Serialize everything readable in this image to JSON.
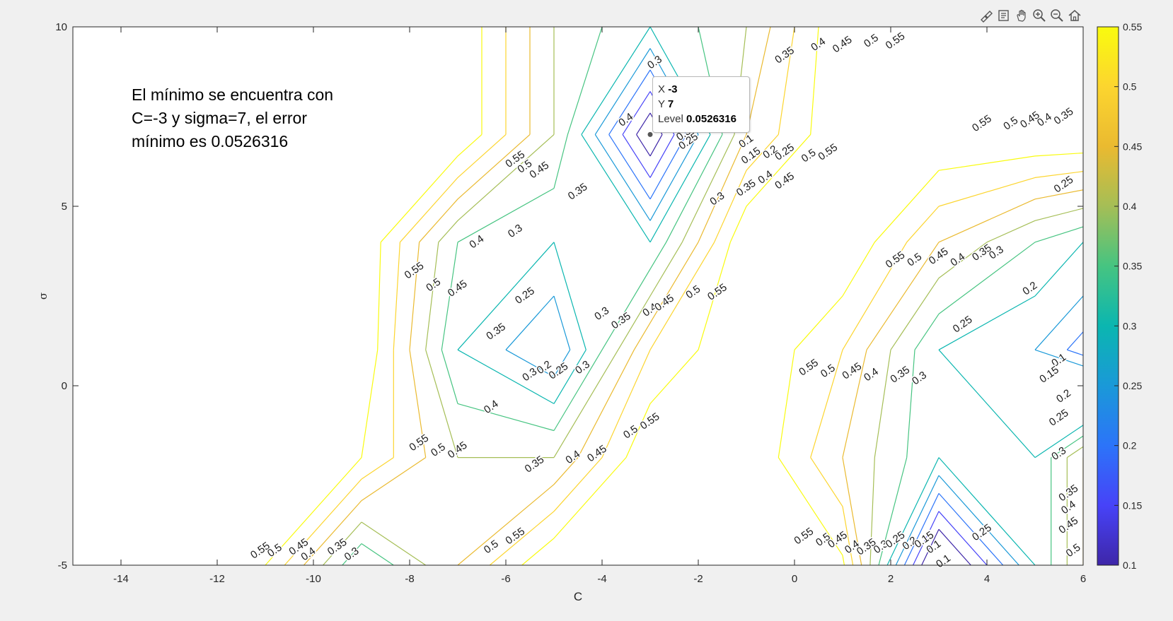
{
  "toolbar": {
    "items": [
      {
        "name": "brush-icon",
        "label": "Brush"
      },
      {
        "name": "datatip-icon",
        "label": "Data Tips"
      },
      {
        "name": "pan-icon",
        "label": "Pan"
      },
      {
        "name": "zoom-in-icon",
        "label": "Zoom In"
      },
      {
        "name": "zoom-out-icon",
        "label": "Zoom Out"
      },
      {
        "name": "home-icon",
        "label": "Restore View"
      }
    ]
  },
  "annotation": {
    "lines": [
      "El mínimo se encuentra con",
      "C=-3 y sigma=7, el error",
      "mínimo es 0.0526316"
    ]
  },
  "datatip": {
    "x_label": "X",
    "x_value": "-3",
    "y_label": "Y",
    "y_value": "7",
    "level_label": "Level",
    "level_value": "0.0526316"
  },
  "colorbar": {
    "min": 0.1,
    "max": 0.55,
    "ticks": [
      "0.1",
      "0.15",
      "0.2",
      "0.25",
      "0.3",
      "0.35",
      "0.4",
      "0.45",
      "0.5",
      "0.55"
    ],
    "colors": [
      "#3e26a8",
      "#4743f8",
      "#2c74f9",
      "#1a99d8",
      "#0bb6b0",
      "#46c481",
      "#a5be56",
      "#eaba30",
      "#fcd52f",
      "#f9fb0e"
    ]
  },
  "chart_data": {
    "type": "contour",
    "xlabel": "C",
    "ylabel": "σ",
    "xlim": [
      -15,
      6
    ],
    "ylim": [
      -5,
      10
    ],
    "xticks": [
      "-14",
      "-12",
      "-10",
      "-8",
      "-6",
      "-4",
      "-2",
      "0",
      "2",
      "4",
      "6"
    ],
    "xtick_values": [
      -14,
      -12,
      -10,
      -8,
      -6,
      -4,
      -2,
      0,
      2,
      4,
      6
    ],
    "yticks": [
      "10",
      "5",
      "0",
      "-5"
    ],
    "ytick_values": [
      10,
      5,
      0,
      -5
    ],
    "grid_x": [
      -15,
      -13,
      -11,
      -9,
      -7,
      -5,
      -3,
      -1,
      1,
      3,
      5,
      7
    ],
    "grid_y": [
      -5,
      -2,
      1,
      4,
      7,
      10
    ],
    "levels": [
      0.1,
      0.15,
      0.2,
      0.25,
      0.3,
      0.35,
      0.4,
      0.45,
      0.5,
      0.55
    ],
    "z": [
      [
        0.6,
        0.6,
        0.55,
        0.3,
        0.45,
        0.6,
        0.6,
        0.6,
        0.56,
        0.0,
        0.3,
        0.6
      ],
      [
        0.6,
        0.6,
        0.6,
        0.55,
        0.4,
        0.4,
        0.6,
        0.6,
        0.45,
        0.3,
        0.3,
        0.6
      ],
      [
        0.6,
        0.6,
        0.6,
        0.6,
        0.3,
        0.2,
        0.5,
        0.6,
        0.5,
        0.3,
        0.25,
        0.1
      ],
      [
        0.6,
        0.6,
        0.6,
        0.6,
        0.35,
        0.3,
        0.3,
        0.6,
        0.6,
        0.45,
        0.35,
        0.25
      ],
      [
        0.6,
        0.6,
        0.6,
        0.6,
        0.6,
        0.4,
        0.05,
        0.45,
        0.6,
        0.6,
        0.6,
        0.6
      ],
      [
        0.6,
        0.6,
        0.6,
        0.6,
        0.6,
        0.4,
        0.3,
        0.4,
        0.6,
        0.6,
        0.6,
        0.6
      ]
    ],
    "minimum": {
      "x": -3,
      "y": 7,
      "level": 0.0526316
    },
    "labels": [
      {
        "t": "0.55",
        "x": -5.8,
        "y": 6.3
      },
      {
        "t": "0.5",
        "x": -5.6,
        "y": 6.1
      },
      {
        "t": "0.45",
        "x": -5.3,
        "y": 6.0
      },
      {
        "t": "0.35",
        "x": -4.5,
        "y": 5.4
      },
      {
        "t": "0.4",
        "x": -3.5,
        "y": 7.4
      },
      {
        "t": "0.3",
        "x": -2.3,
        "y": 7.0
      },
      {
        "t": "0.25",
        "x": -2.2,
        "y": 6.8
      },
      {
        "t": "0.2",
        "x": -1.7,
        "y": 8.3
      },
      {
        "t": "0.1",
        "x": -1.0,
        "y": 6.8
      },
      {
        "t": "0.15",
        "x": -0.9,
        "y": 6.4
      },
      {
        "t": "0.2",
        "x": -0.5,
        "y": 6.5
      },
      {
        "t": "0.25",
        "x": -0.2,
        "y": 6.5
      },
      {
        "t": "0.3",
        "x": -1.6,
        "y": 5.2
      },
      {
        "t": "0.35",
        "x": -1.0,
        "y": 5.5
      },
      {
        "t": "0.4",
        "x": -0.6,
        "y": 5.8
      },
      {
        "t": "0.45",
        "x": -0.2,
        "y": 5.7
      },
      {
        "t": "0.5",
        "x": 0.3,
        "y": 6.4
      },
      {
        "t": "0.55",
        "x": 0.7,
        "y": 6.5
      },
      {
        "t": "0.3",
        "x": -2.9,
        "y": 9.0
      },
      {
        "t": "0.35",
        "x": -0.2,
        "y": 9.2
      },
      {
        "t": "0.4",
        "x": 0.5,
        "y": 9.5
      },
      {
        "t": "0.45",
        "x": 1.0,
        "y": 9.5
      },
      {
        "t": "0.5",
        "x": 1.6,
        "y": 9.6
      },
      {
        "t": "0.55",
        "x": 2.1,
        "y": 9.6
      },
      {
        "t": "0.55",
        "x": -7.9,
        "y": 3.2
      },
      {
        "t": "0.5",
        "x": -7.5,
        "y": 2.8
      },
      {
        "t": "0.45",
        "x": -7.0,
        "y": 2.7
      },
      {
        "t": "0.4",
        "x": -6.6,
        "y": 4.0
      },
      {
        "t": "0.3",
        "x": -5.8,
        "y": 4.3
      },
      {
        "t": "0.35",
        "x": -6.2,
        "y": 1.5
      },
      {
        "t": "0.25",
        "x": -5.6,
        "y": 2.5
      },
      {
        "t": "0.3",
        "x": -4.0,
        "y": 2.0
      },
      {
        "t": "0.35",
        "x": -3.6,
        "y": 1.8
      },
      {
        "t": "0.4",
        "x": -3.0,
        "y": 2.1
      },
      {
        "t": "0.45",
        "x": -2.7,
        "y": 2.3
      },
      {
        "t": "0.5",
        "x": -2.1,
        "y": 2.6
      },
      {
        "t": "0.55",
        "x": -1.6,
        "y": 2.6
      },
      {
        "t": "0.3",
        "x": -5.5,
        "y": 0.3
      },
      {
        "t": "0.2",
        "x": -5.2,
        "y": 0.5
      },
      {
        "t": "0.25",
        "x": -4.9,
        "y": 0.4
      },
      {
        "t": "0.3",
        "x": -4.4,
        "y": 0.5
      },
      {
        "t": "0.4",
        "x": -6.3,
        "y": -0.6
      },
      {
        "t": "0.55",
        "x": -7.8,
        "y": -1.6
      },
      {
        "t": "0.5",
        "x": -7.4,
        "y": -1.8
      },
      {
        "t": "0.45",
        "x": -7.0,
        "y": -1.8
      },
      {
        "t": "0.35",
        "x": -5.4,
        "y": -2.2
      },
      {
        "t": "0.4",
        "x": -4.6,
        "y": -2.0
      },
      {
        "t": "0.45",
        "x": -4.1,
        "y": -1.9
      },
      {
        "t": "0.5",
        "x": -3.4,
        "y": -1.3
      },
      {
        "t": "0.55",
        "x": -3.0,
        "y": -1.0
      },
      {
        "t": "0.55",
        "x": -11.1,
        "y": -4.6
      },
      {
        "t": "0.5",
        "x": -10.8,
        "y": -4.6
      },
      {
        "t": "0.45",
        "x": -10.3,
        "y": -4.5
      },
      {
        "t": "0.4",
        "x": -10.1,
        "y": -4.7
      },
      {
        "t": "0.35",
        "x": -9.5,
        "y": -4.5
      },
      {
        "t": "0.3",
        "x": -9.2,
        "y": -4.7
      },
      {
        "t": "0.5",
        "x": -6.3,
        "y": -4.5
      },
      {
        "t": "0.55",
        "x": -5.8,
        "y": -4.2
      },
      {
        "t": "0.55",
        "x": 3.9,
        "y": 7.3
      },
      {
        "t": "0.5",
        "x": 4.5,
        "y": 7.3
      },
      {
        "t": "0.45",
        "x": 4.9,
        "y": 7.4
      },
      {
        "t": "0.4",
        "x": 5.2,
        "y": 7.4
      },
      {
        "t": "0.35",
        "x": 5.6,
        "y": 7.5
      },
      {
        "t": "0.25",
        "x": 5.6,
        "y": 5.6
      },
      {
        "t": "0.55",
        "x": 2.1,
        "y": 3.5
      },
      {
        "t": "0.5",
        "x": 2.5,
        "y": 3.5
      },
      {
        "t": "0.45",
        "x": 3.0,
        "y": 3.6
      },
      {
        "t": "0.4",
        "x": 3.4,
        "y": 3.5
      },
      {
        "t": "0.35",
        "x": 3.9,
        "y": 3.7
      },
      {
        "t": "0.3",
        "x": 4.2,
        "y": 3.7
      },
      {
        "t": "0.2",
        "x": 4.9,
        "y": 2.7
      },
      {
        "t": "0.25",
        "x": 3.5,
        "y": 1.7
      },
      {
        "t": "0.1",
        "x": 5.5,
        "y": 0.7
      },
      {
        "t": "0.15",
        "x": 5.3,
        "y": 0.3
      },
      {
        "t": "0.2",
        "x": 5.6,
        "y": -0.3
      },
      {
        "t": "0.25",
        "x": 5.5,
        "y": -0.9
      },
      {
        "t": "0.3",
        "x": 5.5,
        "y": -1.9
      },
      {
        "t": "0.55",
        "x": 0.3,
        "y": 0.5
      },
      {
        "t": "0.5",
        "x": 0.7,
        "y": 0.4
      },
      {
        "t": "0.45",
        "x": 1.2,
        "y": 0.4
      },
      {
        "t": "0.4",
        "x": 1.6,
        "y": 0.3
      },
      {
        "t": "0.35",
        "x": 2.2,
        "y": 0.3
      },
      {
        "t": "0.3",
        "x": 2.6,
        "y": 0.2
      },
      {
        "t": "0.55",
        "x": 0.2,
        "y": -4.2
      },
      {
        "t": "0.5",
        "x": 0.6,
        "y": -4.3
      },
      {
        "t": "0.45",
        "x": 0.9,
        "y": -4.3
      },
      {
        "t": "0.4",
        "x": 1.2,
        "y": -4.5
      },
      {
        "t": "0.35",
        "x": 1.5,
        "y": -4.5
      },
      {
        "t": "0.3",
        "x": 1.8,
        "y": -4.5
      },
      {
        "t": "0.25",
        "x": 2.1,
        "y": -4.3
      },
      {
        "t": "0.2",
        "x": 2.4,
        "y": -4.4
      },
      {
        "t": "0.15",
        "x": 2.7,
        "y": -4.3
      },
      {
        "t": "0.1",
        "x": 2.9,
        "y": -4.5
      },
      {
        "t": "0.1",
        "x": 3.1,
        "y": -4.9
      },
      {
        "t": "0.25",
        "x": 3.9,
        "y": -4.1
      },
      {
        "t": "0.35",
        "x": 5.7,
        "y": -3.0
      },
      {
        "t": "0.4",
        "x": 5.7,
        "y": -3.4
      },
      {
        "t": "0.45",
        "x": 5.7,
        "y": -3.9
      },
      {
        "t": "0.5",
        "x": 5.8,
        "y": -4.6
      }
    ]
  }
}
